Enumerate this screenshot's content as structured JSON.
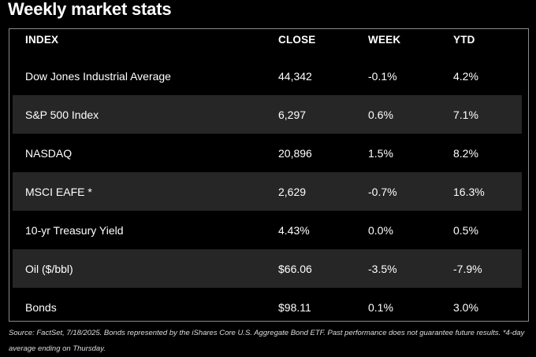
{
  "title": "Weekly market stats",
  "columns": {
    "index": "INDEX",
    "close": "CLOSE",
    "week": "WEEK",
    "ytd": "YTD"
  },
  "rows": [
    {
      "index": "Dow Jones Industrial Average",
      "close": "44,342",
      "week": "-0.1%",
      "ytd": "4.2%"
    },
    {
      "index": "S&P 500 Index",
      "close": "6,297",
      "week": "0.6%",
      "ytd": "7.1%"
    },
    {
      "index": "NASDAQ",
      "close": "20,896",
      "week": "1.5%",
      "ytd": "8.2%"
    },
    {
      "index": "MSCI EAFE *",
      "close": "2,629",
      "week": "-0.7%",
      "ytd": "16.3%"
    },
    {
      "index": "10-yr Treasury Yield",
      "close": "4.43%",
      "week": "0.0%",
      "ytd": "0.5%"
    },
    {
      "index": "Oil ($/bbl)",
      "close": "$66.06",
      "week": "-3.5%",
      "ytd": "-7.9%"
    },
    {
      "index": "Bonds",
      "close": "$98.11",
      "week": "0.1%",
      "ytd": "3.0%"
    }
  ],
  "footnote": "Source: FactSet, 7/18/2025. Bonds represented by the iShares Core U.S. Aggregate Bond ETF. Past performance does not guarantee future results. *4-day average ending on Thursday.",
  "colors": {
    "background": "#000000",
    "stripe": "#262626",
    "border": "#8a8a8a",
    "text": "#ffffff"
  }
}
